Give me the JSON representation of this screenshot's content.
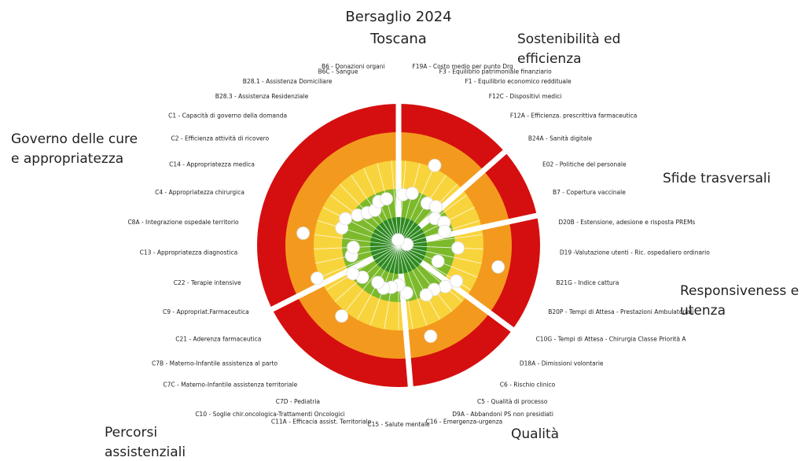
{
  "chart_data": {
    "type": "target",
    "title": "Bersaglio 2024",
    "subtitle": "Toscana",
    "rlim": [
      0,
      5
    ],
    "band_colors": [
      "#d50f0f",
      "#f39a1e",
      "#f8d43c",
      "#7cba2c",
      "#2f8a22"
    ],
    "marker_color": "#ffffff",
    "sections": [
      {
        "name": [
          "Sostenibilità ed",
          "efficienza"
        ],
        "indicators": [
          {
            "label": "F19A - Costo medio per punto Drg",
            "value": 3.2
          },
          {
            "label": "F3 - Equilibrio patrimoniale finanziario",
            "value": 3.1
          },
          {
            "label": "F1 - Equilibrio economico reddituale",
            "value": 1.9
          },
          {
            "label": "F12C - Dispositivi medici",
            "value": 3.2
          },
          {
            "label": "F12A - Efficienza. prescrittiva farmaceutica",
            "value": 3.1
          }
        ]
      },
      {
        "name": [
          "Sfide trasversali"
        ],
        "indicators": [
          {
            "label": "B24A - Sanità digitale",
            "value": 3.4
          },
          {
            "label": "E02 - Politiche del personale",
            "value": 3.2
          },
          {
            "label": "B7 - Copertura vaccinale",
            "value": 3.3
          }
        ]
      },
      {
        "name": [
          "Responsiveness e",
          "utenza"
        ],
        "indicators": [
          {
            "label": "D20B - Estensione, adesione e risposta PREMs",
            "value": 4.7
          },
          {
            "label": "D19 -Valutazione utenti - Ric. ospedaliero ordinario",
            "value": 2.9
          },
          {
            "label": "B21G - Indice cattura",
            "value": 1.4
          },
          {
            "label": "B20P - Tempi di Attesa - Prestazioni Ambulatoriali",
            "value": 3.5
          },
          {
            "label": "C10G - Tempi di Attesa - Chirurgia Classe Priorità A",
            "value": 2.6
          }
        ]
      },
      {
        "name": [
          "Qualità"
        ],
        "indicators": [
          {
            "label": "D18A - Dimissioni volontarie",
            "value": 2.8
          },
          {
            "label": "C6 - Rischio clinico",
            "value": 3.0
          },
          {
            "label": "C5 - Qualità di processo",
            "value": 3.0
          },
          {
            "label": "D9A - Abbandoni PS non presidiati",
            "value": 1.6
          },
          {
            "label": "C16 - Emergenza-urgenza",
            "value": 3.3
          }
        ]
      },
      {
        "name": [
          "Percorsi",
          "assistenziali"
        ],
        "indicators": [
          {
            "label": "C15 - Salute mentale",
            "value": 3.6
          },
          {
            "label": "C11A - Efficacia assist. Territoriale",
            "value": 3.5
          },
          {
            "label": "C10 - Soglie chir.oncologica-Trattamenti Oncologici",
            "value": 3.4
          },
          {
            "label": "C7D - Pediatria",
            "value": 3.5
          },
          {
            "label": "C7C - Materno-Infantile assistenza territoriale",
            "value": 1.8
          },
          {
            "label": "C7B - Materno-Infantile assistenza al parto",
            "value": 3.3
          },
          {
            "label": "C21 - Aderenza farmaceutica",
            "value": 3.1
          }
        ]
      },
      {
        "name": [
          "Governo delle cure",
          "e appropriatezza"
        ],
        "indicators": [
          {
            "label": "C9 - Appropriat.Farmaceutica",
            "value": 1.9
          },
          {
            "label": "C22 - Terapie intensive",
            "value": 3.3
          },
          {
            "label": "C13 - Appropriatezza diagnostica",
            "value": 3.4
          },
          {
            "label": "C8A - Integrazione ospedale territorio",
            "value": 1.6
          },
          {
            "label": "C4 - Appropriatezza chirurgica",
            "value": 2.9
          },
          {
            "label": "C14 - Appropriatezza medica",
            "value": 2.9
          },
          {
            "label": "C2 - Efficienza attività di ricovero",
            "value": 3.2
          },
          {
            "label": "C1 - Capacità di governo della domanda",
            "value": 3.4
          },
          {
            "label": "B28.3 - Assistenza Residenziale",
            "value": 3.5
          },
          {
            "label": "B28.1 - Assistenza Domiciliare",
            "value": 3.3
          },
          {
            "label": "B6C - Sangue",
            "value": 3.3
          },
          {
            "label": "B6 - Donazioni organi",
            "value": 4.8
          }
        ]
      }
    ]
  }
}
